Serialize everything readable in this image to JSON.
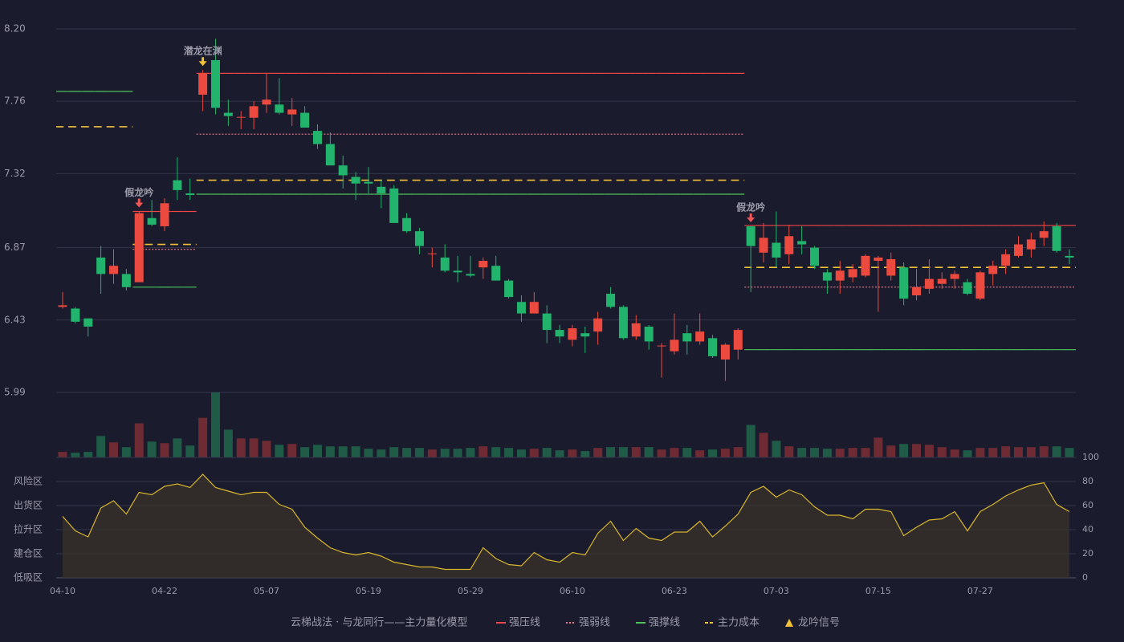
{
  "chart_data": {
    "type": "candlestick",
    "categories": [
      "04-10",
      null,
      null,
      null,
      null,
      null,
      null,
      null,
      "04-22",
      null,
      null,
      null,
      null,
      null,
      null,
      null,
      "05-07",
      null,
      null,
      null,
      null,
      null,
      null,
      null,
      "05-19",
      null,
      null,
      null,
      null,
      null,
      null,
      null,
      "05-29",
      null,
      null,
      null,
      null,
      null,
      null,
      null,
      "06-10",
      null,
      null,
      null,
      null,
      null,
      null,
      null,
      "06-23",
      null,
      null,
      null,
      null,
      null,
      null,
      null,
      "07-03",
      null,
      null,
      null,
      null,
      null,
      null,
      null,
      "07-15",
      null,
      null,
      null,
      null,
      null,
      null,
      null,
      "07-27",
      null,
      null,
      null,
      null,
      null,
      null,
      null
    ],
    "ohlc": [
      [
        6.51,
        6.6,
        6.5,
        6.52
      ],
      [
        6.5,
        6.51,
        6.41,
        6.42
      ],
      [
        6.44,
        6.44,
        6.33,
        6.39
      ],
      [
        6.81,
        6.88,
        6.59,
        6.71
      ],
      [
        6.71,
        6.86,
        6.65,
        6.76
      ],
      [
        6.71,
        6.74,
        6.61,
        6.63
      ],
      [
        6.66,
        7.09,
        6.66,
        7.08
      ],
      [
        7.05,
        7.16,
        7.0,
        7.01
      ],
      [
        7.0,
        7.17,
        6.97,
        7.14
      ],
      [
        7.28,
        7.42,
        7.16,
        7.22
      ],
      [
        7.2,
        7.29,
        7.16,
        7.19
      ],
      [
        7.8,
        7.95,
        7.7,
        7.93
      ],
      [
        8.01,
        8.14,
        7.68,
        7.72
      ],
      [
        7.69,
        7.77,
        7.61,
        7.67
      ],
      [
        7.66,
        7.7,
        7.59,
        7.665
      ],
      [
        7.66,
        7.76,
        7.59,
        7.73
      ],
      [
        7.74,
        7.93,
        7.69,
        7.77
      ],
      [
        7.74,
        7.9,
        7.68,
        7.69
      ],
      [
        7.68,
        7.78,
        7.61,
        7.71
      ],
      [
        7.69,
        7.73,
        7.6,
        7.6
      ],
      [
        7.58,
        7.62,
        7.47,
        7.5
      ],
      [
        7.5,
        7.57,
        7.37,
        7.37
      ],
      [
        7.37,
        7.43,
        7.23,
        7.31
      ],
      [
        7.3,
        7.33,
        7.16,
        7.26
      ],
      [
        7.27,
        7.36,
        7.2,
        7.26
      ],
      [
        7.24,
        7.28,
        7.11,
        7.2
      ],
      [
        7.23,
        7.25,
        7.02,
        7.02
      ],
      [
        7.05,
        7.08,
        6.96,
        6.97
      ],
      [
        6.97,
        6.99,
        6.83,
        6.88
      ],
      [
        6.83,
        6.87,
        6.75,
        6.835
      ],
      [
        6.81,
        6.89,
        6.72,
        6.73
      ],
      [
        6.73,
        6.82,
        6.66,
        6.72
      ],
      [
        6.71,
        6.82,
        6.69,
        6.7
      ],
      [
        6.75,
        6.81,
        6.68,
        6.79
      ],
      [
        6.76,
        6.82,
        6.67,
        6.67
      ],
      [
        6.67,
        6.68,
        6.56,
        6.57
      ],
      [
        6.54,
        6.58,
        6.42,
        6.47
      ],
      [
        6.47,
        6.6,
        6.47,
        6.54
      ],
      [
        6.47,
        6.52,
        6.29,
        6.37
      ],
      [
        6.37,
        6.4,
        6.29,
        6.33
      ],
      [
        6.31,
        6.4,
        6.27,
        6.38
      ],
      [
        6.35,
        6.39,
        6.23,
        6.33
      ],
      [
        6.36,
        6.48,
        6.28,
        6.44
      ],
      [
        6.59,
        6.63,
        6.5,
        6.51
      ],
      [
        6.51,
        6.52,
        6.31,
        6.32
      ],
      [
        6.33,
        6.46,
        6.31,
        6.41
      ],
      [
        6.39,
        6.4,
        6.25,
        6.3
      ],
      [
        6.27,
        6.29,
        6.08,
        6.275
      ],
      [
        6.24,
        6.47,
        6.22,
        6.31
      ],
      [
        6.35,
        6.4,
        6.22,
        6.3
      ],
      [
        6.3,
        6.47,
        6.28,
        6.36
      ],
      [
        6.32,
        6.34,
        6.2,
        6.21
      ],
      [
        6.19,
        6.29,
        6.06,
        6.28
      ],
      [
        6.25,
        6.38,
        6.19,
        6.37
      ],
      [
        7.0,
        7.0,
        6.6,
        6.88
      ],
      [
        6.84,
        7.02,
        6.78,
        6.93
      ],
      [
        6.9,
        7.09,
        6.75,
        6.81
      ],
      [
        6.83,
        7.01,
        6.77,
        6.94
      ],
      [
        6.91,
        7.0,
        6.83,
        6.89
      ],
      [
        6.87,
        6.88,
        6.74,
        6.76
      ],
      [
        6.72,
        6.74,
        6.59,
        6.67
      ],
      [
        6.67,
        6.79,
        6.59,
        6.73
      ],
      [
        6.69,
        6.77,
        6.66,
        6.74
      ],
      [
        6.7,
        6.83,
        6.69,
        6.82
      ],
      [
        6.79,
        6.82,
        6.48,
        6.81
      ],
      [
        6.7,
        6.84,
        6.67,
        6.8
      ],
      [
        6.75,
        6.78,
        6.52,
        6.56
      ],
      [
        6.58,
        6.74,
        6.55,
        6.63
      ],
      [
        6.62,
        6.8,
        6.59,
        6.68
      ],
      [
        6.65,
        6.72,
        6.62,
        6.68
      ],
      [
        6.68,
        6.73,
        6.62,
        6.71
      ],
      [
        6.66,
        6.68,
        6.58,
        6.59
      ],
      [
        6.56,
        6.73,
        6.55,
        6.72
      ],
      [
        6.71,
        6.79,
        6.64,
        6.76
      ],
      [
        6.76,
        6.86,
        6.71,
        6.83
      ],
      [
        6.82,
        6.94,
        6.81,
        6.89
      ],
      [
        6.86,
        6.96,
        6.81,
        6.92
      ],
      [
        6.93,
        7.03,
        6.88,
        6.97
      ],
      [
        7.0,
        7.02,
        6.84,
        6.85
      ],
      [
        6.82,
        6.86,
        6.77,
        6.81
      ]
    ],
    "up_color": "#ec4a3f",
    "down_color": "#22b46c",
    "ylim": [
      5.99,
      8.2
    ],
    "yticks": [
      {
        "value": 8.2,
        "label": "8.20"
      },
      7.76,
      7.32,
      6.87,
      6.43,
      5.99
    ],
    "grid": true,
    "volume": {
      "up_color": "#6e2b34",
      "down_color": "#1f5b47",
      "values": [
        7,
        6,
        7,
        27,
        19,
        13,
        43,
        20,
        18,
        24,
        15,
        50,
        82,
        35,
        24,
        24,
        21,
        16,
        17,
        13,
        16,
        14,
        14,
        14,
        11,
        10,
        13,
        12,
        12,
        10,
        11,
        11,
        12,
        14,
        13,
        12,
        10,
        11,
        12,
        9,
        10,
        8,
        12,
        13,
        13,
        13,
        13,
        10,
        12,
        12,
        9,
        10,
        11,
        13,
        41,
        31,
        21,
        14,
        12,
        12,
        11,
        11,
        12,
        12,
        25,
        15,
        17,
        17,
        16,
        13,
        10,
        9,
        12,
        12,
        14,
        13,
        13,
        14,
        14,
        12
      ]
    },
    "levels": [
      {
        "name": "强压线",
        "color": "#ef4444",
        "style": "solid",
        "values": [
          null,
          null,
          null,
          null,
          null,
          null,
          7.09,
          7.09,
          7.09,
          7.09,
          7.09,
          7.93,
          7.93,
          7.93,
          7.93,
          7.93,
          7.93,
          7.93,
          7.93,
          7.93,
          7.93,
          7.93,
          7.93,
          7.93,
          7.93,
          7.93,
          7.93,
          7.93,
          7.93,
          7.93,
          7.93,
          7.93,
          7.93,
          7.93,
          7.93,
          7.93,
          7.93,
          7.93,
          7.93,
          7.93,
          7.93,
          7.93,
          7.93,
          7.93,
          7.93,
          7.93,
          7.93,
          7.93,
          7.93,
          7.93,
          7.93,
          7.93,
          7.93,
          7.93,
          7.005,
          7.005,
          7.005,
          7.005,
          7.005,
          7.005,
          7.005,
          7.005,
          7.005,
          7.005,
          7.005,
          7.005,
          7.005,
          7.005,
          7.005,
          7.005,
          7.005,
          7.005,
          7.005,
          7.005,
          7.005,
          7.005,
          7.005,
          7.005,
          7.005,
          7.005
        ]
      },
      {
        "name": "强弱线",
        "color": "#f07a8a",
        "style": "dotted",
        "values": [
          null,
          null,
          null,
          null,
          null,
          null,
          6.86,
          6.86,
          6.86,
          6.86,
          6.86,
          7.56,
          7.56,
          7.56,
          7.56,
          7.56,
          7.56,
          7.56,
          7.56,
          7.56,
          7.56,
          7.56,
          7.56,
          7.56,
          7.56,
          7.56,
          7.56,
          7.56,
          7.56,
          7.56,
          7.56,
          7.56,
          7.56,
          7.56,
          7.56,
          7.56,
          7.56,
          7.56,
          7.56,
          7.56,
          7.56,
          7.56,
          7.56,
          7.56,
          7.56,
          7.56,
          7.56,
          7.56,
          7.56,
          7.56,
          7.56,
          7.56,
          7.56,
          7.56,
          6.63,
          6.63,
          6.63,
          6.63,
          6.63,
          6.63,
          6.63,
          6.63,
          6.63,
          6.63,
          6.63,
          6.63,
          6.63,
          6.63,
          6.63,
          6.63,
          6.63,
          6.63,
          6.63,
          6.63,
          6.63,
          6.63,
          6.63,
          6.63,
          6.63,
          6.63
        ]
      },
      {
        "name": "强撑线",
        "color": "#4cc55a",
        "style": "solid",
        "values": [
          7.82,
          7.82,
          7.82,
          7.82,
          7.82,
          7.82,
          6.63,
          6.63,
          6.63,
          6.63,
          6.63,
          7.195,
          7.195,
          7.195,
          7.195,
          7.195,
          7.195,
          7.195,
          7.195,
          7.195,
          7.195,
          7.195,
          7.195,
          7.195,
          7.195,
          7.195,
          7.195,
          7.195,
          7.195,
          7.195,
          7.195,
          7.195,
          7.195,
          7.195,
          7.195,
          7.195,
          7.195,
          7.195,
          7.195,
          7.195,
          7.195,
          7.195,
          7.195,
          7.195,
          7.195,
          7.195,
          7.195,
          7.195,
          7.195,
          7.195,
          7.195,
          7.195,
          7.195,
          7.195,
          6.25,
          6.25,
          6.25,
          6.25,
          6.25,
          6.25,
          6.25,
          6.25,
          6.25,
          6.25,
          6.25,
          6.25,
          6.25,
          6.25,
          6.25,
          6.25,
          6.25,
          6.25,
          6.25,
          6.25,
          6.25,
          6.25,
          6.25,
          6.25,
          6.25,
          6.25
        ]
      },
      {
        "name": "主力成本",
        "color": "#f2c037",
        "style": "dashed",
        "values": [
          7.605,
          7.605,
          7.605,
          7.605,
          7.605,
          7.605,
          6.89,
          6.89,
          6.89,
          6.89,
          6.89,
          7.28,
          7.28,
          7.28,
          7.28,
          7.28,
          7.28,
          7.28,
          7.28,
          7.28,
          7.28,
          7.28,
          7.28,
          7.28,
          7.28,
          7.28,
          7.28,
          7.28,
          7.28,
          7.28,
          7.28,
          7.28,
          7.28,
          7.28,
          7.28,
          7.28,
          7.28,
          7.28,
          7.28,
          7.28,
          7.28,
          7.28,
          7.28,
          7.28,
          7.28,
          7.28,
          7.28,
          7.28,
          7.28,
          7.28,
          7.28,
          7.28,
          7.28,
          7.28,
          6.75,
          6.75,
          6.75,
          6.75,
          6.75,
          6.75,
          6.75,
          6.75,
          6.75,
          6.75,
          6.75,
          6.75,
          6.75,
          6.75,
          6.75,
          6.75,
          6.75,
          6.75,
          6.75,
          6.75,
          6.75,
          6.75,
          6.75,
          6.75,
          6.75,
          6.75
        ]
      }
    ],
    "signals": [
      {
        "index": 6,
        "label": "假龙吟",
        "color": "#f05656"
      },
      {
        "index": 11,
        "label": "潜龙在渊",
        "color": "#f2c037"
      },
      {
        "index": 54,
        "label": "假龙吟",
        "color": "#f05656"
      }
    ],
    "oscillator": {
      "color": "#d9b62c",
      "values": [
        51,
        39,
        34,
        58,
        64,
        53,
        71,
        69,
        76,
        78,
        75,
        86,
        75,
        72,
        69,
        71,
        71,
        61,
        57,
        42,
        33,
        25,
        21,
        19,
        21,
        18,
        13,
        11,
        9,
        9,
        7,
        7,
        7,
        25,
        16,
        11,
        10,
        21,
        15,
        13,
        21,
        19,
        37,
        47,
        31,
        41,
        33,
        31,
        38,
        38,
        47,
        34,
        43,
        53,
        71,
        76,
        67,
        73,
        69,
        59,
        52,
        52,
        49,
        57,
        57,
        55,
        35,
        42,
        48,
        49,
        55,
        39,
        55,
        61,
        68,
        73,
        77,
        79,
        61,
        55
      ],
      "ylim": [
        0,
        100
      ],
      "yticks": [
        0,
        20,
        40,
        60,
        80,
        100
      ],
      "ytick_colors": [
        "#f04444",
        "#f0a030",
        "#4a90e2",
        "#e040e0",
        "#f0a030",
        "#44dd44"
      ],
      "zones": [
        {
          "label": "风险区",
          "value": 80,
          "color": "#f0a030"
        },
        {
          "label": "出货区",
          "value": 60,
          "color": "#e040e0"
        },
        {
          "label": "拉升区",
          "value": 40,
          "color": "#4a90e2"
        },
        {
          "label": "建仓区",
          "value": 20,
          "color": "#e05050"
        },
        {
          "label": "低吸区",
          "value": 0,
          "color": "#e04040"
        }
      ]
    },
    "legend": {
      "title": "云梯战法 · 与龙同行——主力量化模型",
      "title_color": "#e6c36a",
      "signal": {
        "name": "龙吟信号",
        "color": "#f2c037"
      }
    }
  }
}
